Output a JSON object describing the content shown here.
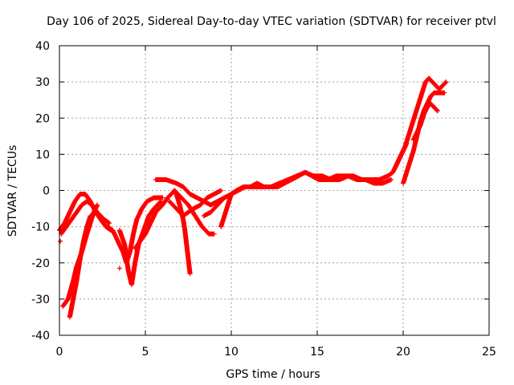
{
  "chart_data": {
    "type": "scatter",
    "title": "Day 106 of 2025, Sidereal Day-to-day VTEC variation (SDTVAR) for receiver ptvl",
    "xlabel": "GPS time / hours",
    "ylabel": "SDTVAR / TECUs",
    "xlim": [
      0,
      25
    ],
    "ylim": [
      -40,
      40
    ],
    "xticks": [
      "0",
      "5",
      "10",
      "15",
      "20",
      "25"
    ],
    "yticks": [
      "-40",
      "-30",
      "-20",
      "-10",
      "0",
      "10",
      "20",
      "30",
      "40"
    ],
    "grid": true,
    "marker": "+",
    "series_color": "#ff0000",
    "tracks": [
      [
        [
          0.0,
          -11
        ],
        [
          0.3,
          -9
        ],
        [
          0.6,
          -6
        ],
        [
          0.9,
          -3
        ],
        [
          1.2,
          -1
        ],
        [
          1.5,
          -1
        ],
        [
          1.8,
          -3
        ],
        [
          2.1,
          -6
        ],
        [
          2.4,
          -8
        ],
        [
          2.7,
          -10
        ],
        [
          3.0,
          -11
        ]
      ],
      [
        [
          0.1,
          -12
        ],
        [
          0.4,
          -10
        ],
        [
          0.7,
          -8
        ],
        [
          1.0,
          -6
        ],
        [
          1.3,
          -4
        ],
        [
          1.6,
          -3
        ],
        [
          1.9,
          -4
        ],
        [
          2.2,
          -6
        ],
        [
          2.6,
          -8
        ],
        [
          2.9,
          -9
        ]
      ],
      [
        [
          0.2,
          -32
        ],
        [
          0.5,
          -30
        ],
        [
          0.8,
          -25
        ],
        [
          1.0,
          -21
        ],
        [
          1.3,
          -17
        ],
        [
          1.6,
          -12
        ],
        [
          1.8,
          -9
        ],
        [
          2.0,
          -6
        ],
        [
          2.2,
          -4
        ]
      ],
      [
        [
          0.6,
          -35
        ],
        [
          0.8,
          -30
        ],
        [
          1.0,
          -25
        ],
        [
          1.2,
          -19
        ],
        [
          1.4,
          -14
        ],
        [
          1.6,
          -10
        ],
        [
          1.8,
          -7
        ]
      ],
      [
        [
          2.8,
          -10
        ],
        [
          3.1,
          -11
        ],
        [
          3.4,
          -14
        ],
        [
          3.7,
          -17
        ],
        [
          3.9,
          -20
        ],
        [
          4.1,
          -17
        ],
        [
          4.3,
          -12
        ],
        [
          4.5,
          -8
        ],
        [
          4.8,
          -5
        ],
        [
          5.1,
          -3
        ],
        [
          5.5,
          -2
        ],
        [
          6.0,
          -2
        ]
      ],
      [
        [
          3.5,
          -11
        ],
        [
          3.8,
          -15
        ],
        [
          4.0,
          -22
        ],
        [
          4.2,
          -26
        ],
        [
          4.4,
          -20
        ],
        [
          4.6,
          -15
        ],
        [
          4.9,
          -11
        ],
        [
          5.2,
          -7
        ],
        [
          5.5,
          -5
        ],
        [
          5.9,
          -3
        ]
      ],
      [
        [
          4.4,
          -16
        ],
        [
          4.7,
          -14
        ],
        [
          5.0,
          -12
        ],
        [
          5.3,
          -9
        ],
        [
          5.6,
          -6
        ],
        [
          6.0,
          -4
        ],
        [
          6.3,
          -2
        ],
        [
          6.7,
          0
        ],
        [
          7.1,
          -2
        ],
        [
          7.5,
          -4
        ],
        [
          7.9,
          -7
        ],
        [
          8.3,
          -10
        ],
        [
          8.7,
          -12
        ],
        [
          9.0,
          -12
        ]
      ],
      [
        [
          5.6,
          3
        ],
        [
          6.2,
          3
        ],
        [
          6.8,
          2
        ],
        [
          7.2,
          1
        ],
        [
          7.6,
          -1
        ],
        [
          8.0,
          -2
        ],
        [
          8.4,
          -3
        ],
        [
          8.8,
          -4
        ],
        [
          9.2,
          -3
        ],
        [
          9.6,
          -2
        ]
      ],
      [
        [
          6.4,
          -3
        ],
        [
          6.8,
          -5
        ],
        [
          7.2,
          -7
        ],
        [
          7.5,
          -6
        ],
        [
          7.8,
          -5
        ],
        [
          8.2,
          -4
        ],
        [
          8.6,
          -2
        ],
        [
          9.0,
          -1
        ],
        [
          9.4,
          0
        ]
      ],
      [
        [
          6.8,
          -1
        ],
        [
          7.0,
          -4
        ],
        [
          7.2,
          -8
        ],
        [
          7.3,
          -11
        ],
        [
          7.4,
          -15
        ],
        [
          7.5,
          -19
        ],
        [
          7.6,
          -23
        ]
      ],
      [
        [
          8.4,
          -7
        ],
        [
          8.8,
          -6
        ],
        [
          9.2,
          -4
        ],
        [
          9.6,
          -2
        ],
        [
          10.0,
          -1
        ],
        [
          10.4,
          0
        ],
        [
          10.8,
          1
        ],
        [
          11.2,
          1
        ],
        [
          11.6,
          1
        ],
        [
          12.0,
          1
        ]
      ],
      [
        [
          9.4,
          -10
        ],
        [
          9.6,
          -7
        ],
        [
          9.8,
          -4
        ],
        [
          10.0,
          -1
        ],
        [
          10.3,
          0
        ],
        [
          10.7,
          1
        ],
        [
          11.1,
          1
        ],
        [
          11.5,
          2
        ],
        [
          11.9,
          1
        ],
        [
          12.3,
          1
        ],
        [
          12.7,
          1
        ],
        [
          13.1,
          2
        ],
        [
          13.5,
          3
        ],
        [
          13.9,
          4
        ],
        [
          14.3,
          5
        ],
        [
          14.7,
          4
        ],
        [
          15.1,
          3
        ],
        [
          15.5,
          3
        ],
        [
          15.9,
          3
        ]
      ],
      [
        [
          11.8,
          1
        ],
        [
          12.3,
          1
        ],
        [
          12.8,
          2
        ],
        [
          13.3,
          3
        ],
        [
          13.8,
          4
        ],
        [
          14.3,
          5
        ],
        [
          14.8,
          4
        ],
        [
          15.3,
          4
        ],
        [
          15.8,
          3
        ],
        [
          16.3,
          3
        ],
        [
          16.8,
          4
        ],
        [
          17.3,
          3
        ],
        [
          17.8,
          3
        ],
        [
          18.3,
          2
        ],
        [
          18.8,
          2
        ],
        [
          19.3,
          3
        ]
      ],
      [
        [
          15.6,
          3
        ],
        [
          16.1,
          4
        ],
        [
          16.6,
          4
        ],
        [
          17.1,
          4
        ],
        [
          17.6,
          3
        ],
        [
          18.1,
          3
        ],
        [
          18.6,
          3
        ],
        [
          19.1,
          4
        ],
        [
          19.4,
          5
        ],
        [
          19.6,
          7
        ],
        [
          19.8,
          9
        ],
        [
          20.0,
          11
        ],
        [
          20.2,
          13
        ]
      ],
      [
        [
          19.5,
          6
        ],
        [
          19.7,
          8
        ],
        [
          19.9,
          10
        ],
        [
          20.1,
          12
        ],
        [
          20.3,
          15
        ],
        [
          20.5,
          18
        ],
        [
          20.7,
          21
        ],
        [
          20.9,
          24
        ],
        [
          21.1,
          27
        ],
        [
          21.3,
          30
        ],
        [
          21.5,
          31
        ],
        [
          21.7,
          30
        ],
        [
          21.9,
          29
        ],
        [
          22.1,
          28
        ],
        [
          22.3,
          29
        ],
        [
          22.5,
          30
        ]
      ],
      [
        [
          20.0,
          2
        ],
        [
          20.2,
          5
        ],
        [
          20.4,
          8
        ],
        [
          20.6,
          11
        ],
        [
          20.8,
          15
        ],
        [
          21.0,
          19
        ],
        [
          21.2,
          22
        ],
        [
          21.4,
          24
        ],
        [
          21.6,
          26
        ],
        [
          21.8,
          27
        ],
        [
          22.0,
          27
        ],
        [
          22.2,
          27
        ],
        [
          22.4,
          27
        ]
      ],
      [
        [
          20.6,
          14
        ],
        [
          20.8,
          16
        ],
        [
          21.0,
          18
        ],
        [
          21.2,
          21
        ],
        [
          21.4,
          23
        ],
        [
          21.6,
          24
        ],
        [
          21.8,
          23
        ],
        [
          22.0,
          22
        ]
      ]
    ],
    "isolated_points": [
      [
        0.05,
        -14
      ],
      [
        3.5,
        -21.5
      ]
    ]
  }
}
